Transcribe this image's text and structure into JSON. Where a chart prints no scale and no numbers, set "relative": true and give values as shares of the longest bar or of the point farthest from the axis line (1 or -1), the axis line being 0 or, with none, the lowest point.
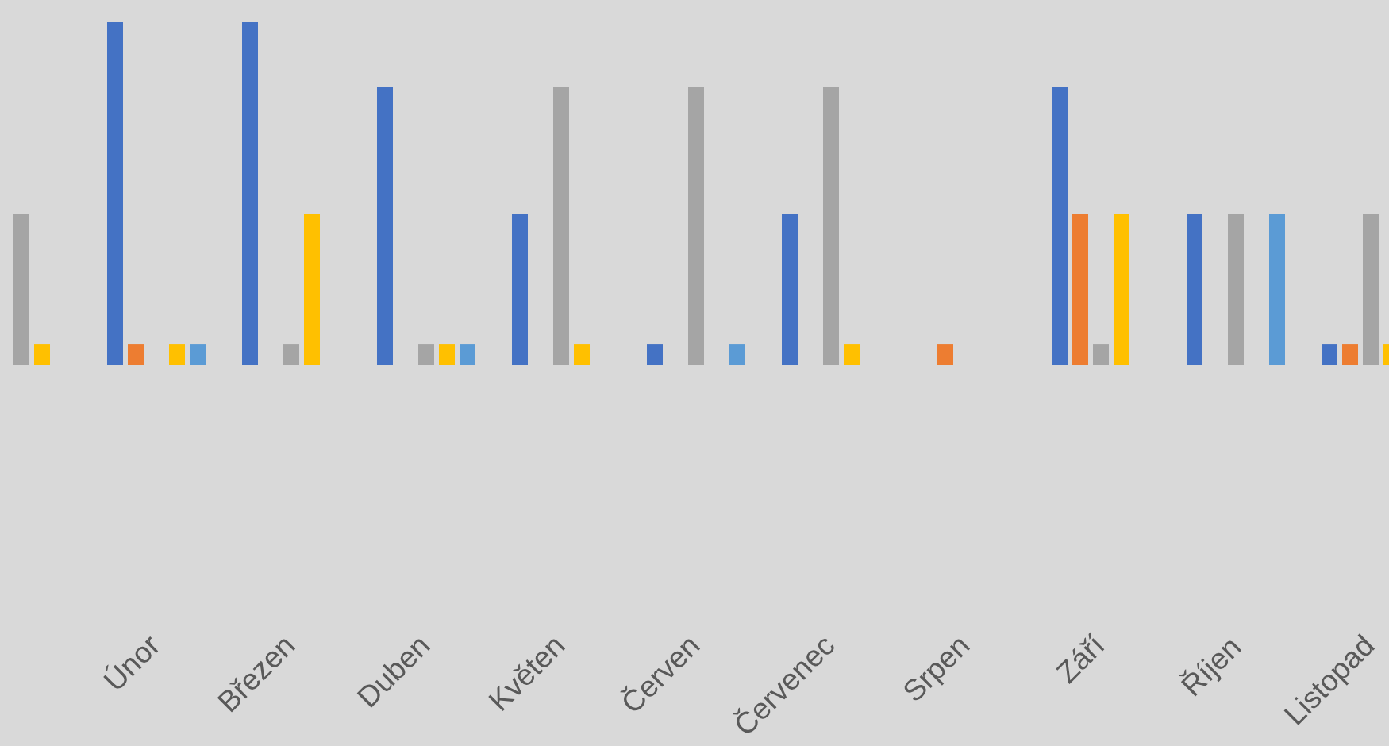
{
  "chart_data": {
    "type": "bar",
    "relative": true,
    "categories": [
      null,
      "Únor",
      "Březen",
      "Duben",
      "Květen",
      "Červen",
      "Červenec",
      "Srpen",
      "Září",
      "Říjen",
      "Listopad"
    ],
    "series": [
      {
        "color": "#4472c4",
        "values": [
          null,
          1,
          1,
          0.81,
          0.44,
          0.06,
          0.44,
          null,
          0.81,
          0.44,
          0.06
        ]
      },
      {
        "color": "#ed7d31",
        "values": [
          null,
          0.06,
          null,
          null,
          null,
          null,
          null,
          0.06,
          0.44,
          null,
          0.06
        ]
      },
      {
        "color": "#a5a5a5",
        "values": [
          0.44,
          null,
          0.06,
          0.06,
          0.81,
          0.81,
          0.81,
          null,
          0.06,
          0.44,
          0.44
        ]
      },
      {
        "color": "#ffc000",
        "values": [
          0.06,
          0.06,
          0.44,
          0.06,
          0.06,
          null,
          0.06,
          null,
          0.44,
          null,
          0.06
        ]
      },
      {
        "color": "#5b9bd5",
        "values": [
          null,
          0.06,
          null,
          0.06,
          null,
          0.06,
          null,
          null,
          null,
          0.44,
          null
        ]
      }
    ]
  }
}
